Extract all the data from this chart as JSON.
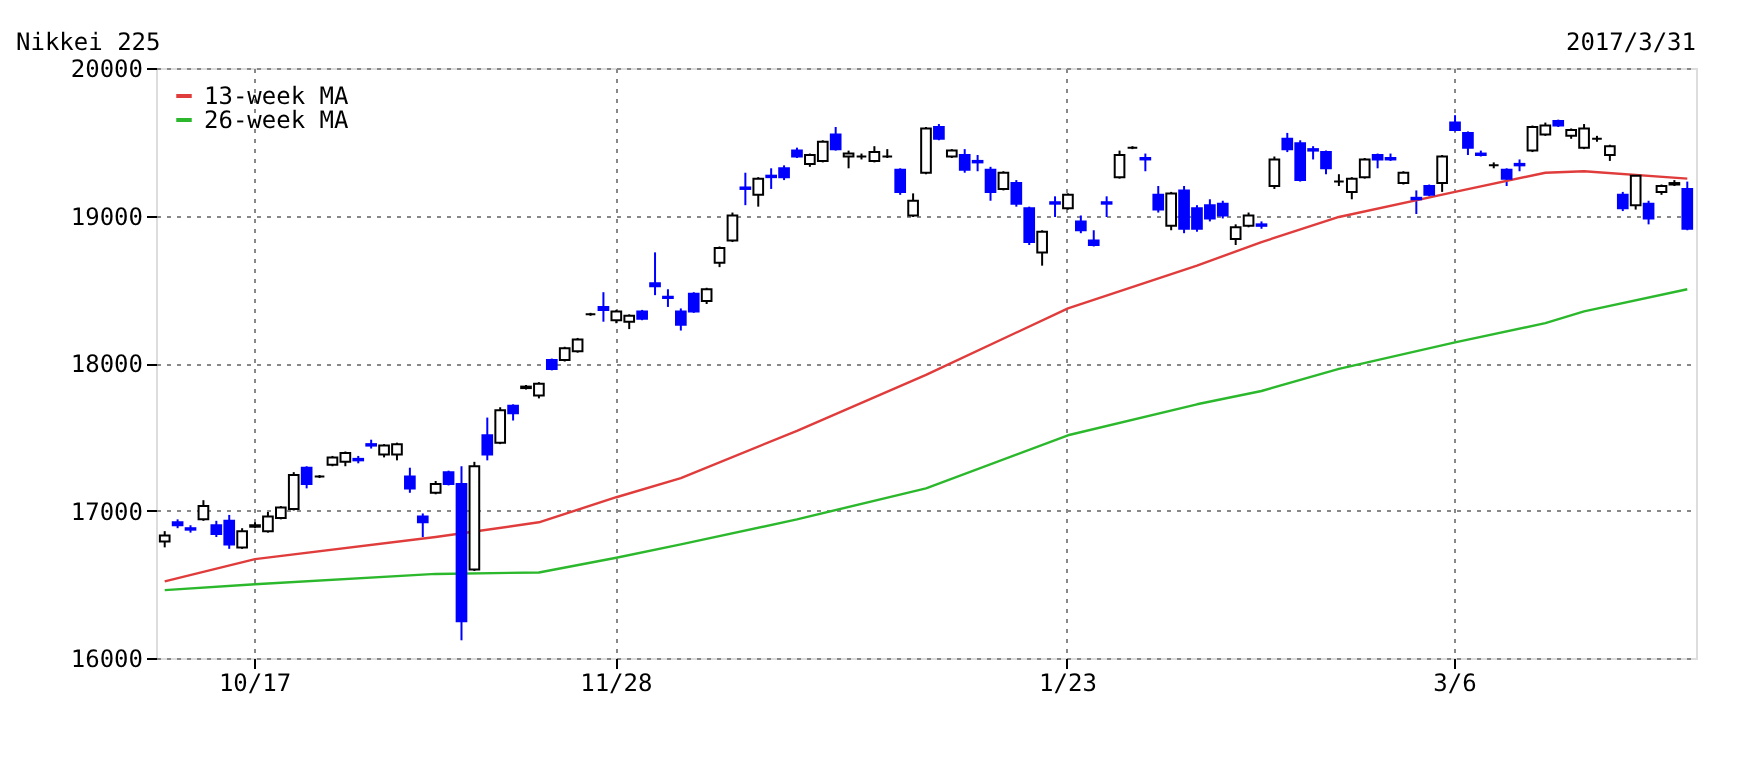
{
  "chart_data": {
    "type": "candlestick",
    "title": "Nikkei 225",
    "annotations": [
      "2017/3/31"
    ],
    "categories": [
      null,
      null,
      null,
      null,
      null,
      null,
      null,
      "10/17",
      null,
      null,
      null,
      null,
      null,
      null,
      null,
      null,
      null,
      null,
      null,
      null,
      null,
      null,
      null,
      null,
      null,
      null,
      null,
      null,
      null,
      null,
      null,
      null,
      null,
      null,
      null,
      "11/28",
      null,
      null,
      null,
      null,
      null,
      null,
      null,
      null,
      null,
      null,
      null,
      null,
      null,
      null,
      null,
      null,
      null,
      null,
      null,
      null,
      null,
      null,
      null,
      null,
      null,
      null,
      null,
      null,
      null,
      null,
      null,
      null,
      null,
      null,
      "1/23",
      null,
      null,
      null,
      null,
      null,
      null,
      null,
      null,
      null,
      null,
      null,
      null,
      null,
      null,
      null,
      null,
      null,
      null,
      null,
      null,
      null,
      null,
      null,
      null,
      null,
      null,
      null,
      null,
      null,
      "3/6",
      null,
      null,
      null,
      null,
      null,
      null,
      null,
      null,
      null,
      null,
      null,
      null,
      null,
      null,
      null,
      null,
      null,
      null
    ],
    "ohlc": [
      [
        16790,
        16860,
        16750,
        16830
      ],
      [
        16920,
        16940,
        16880,
        16900
      ],
      [
        16880,
        16900,
        16850,
        16870
      ],
      [
        16940,
        17070,
        16930,
        17030
      ],
      [
        16900,
        16930,
        16820,
        16840
      ],
      [
        16930,
        16970,
        16740,
        16770
      ],
      [
        16750,
        16880,
        16740,
        16860
      ],
      [
        16890,
        16920,
        16880,
        16900
      ],
      [
        16860,
        16990,
        16850,
        16960
      ],
      [
        16950,
        17030,
        16940,
        17020
      ],
      [
        17010,
        17260,
        17000,
        17240
      ],
      [
        17290,
        17300,
        17150,
        17180
      ],
      [
        17230,
        17240,
        17220,
        17230
      ],
      [
        17310,
        17370,
        17300,
        17360
      ],
      [
        17330,
        17400,
        17300,
        17390
      ],
      [
        17350,
        17370,
        17320,
        17340
      ],
      [
        17450,
        17480,
        17420,
        17440
      ],
      [
        17380,
        17450,
        17360,
        17440
      ],
      [
        17380,
        17460,
        17340,
        17450
      ],
      [
        17230,
        17290,
        17120,
        17150
      ],
      [
        16960,
        16980,
        16820,
        16920
      ],
      [
        17120,
        17200,
        17110,
        17180
      ],
      [
        17260,
        17270,
        17170,
        17180
      ],
      [
        17180,
        17300,
        16120,
        16250
      ],
      [
        16600,
        17330,
        16590,
        17300
      ],
      [
        17510,
        17630,
        17340,
        17380
      ],
      [
        17460,
        17700,
        17450,
        17680
      ],
      [
        17710,
        17720,
        17610,
        17660
      ],
      [
        17830,
        17850,
        17820,
        17840
      ],
      [
        17780,
        17870,
        17760,
        17860
      ],
      [
        18020,
        18030,
        17950,
        17960
      ],
      [
        18020,
        18110,
        18010,
        18100
      ],
      [
        18080,
        18170,
        18070,
        18160
      ],
      [
        18330,
        18340,
        18320,
        18330
      ],
      [
        18380,
        18480,
        18280,
        18360
      ],
      [
        18290,
        18360,
        18270,
        18350
      ],
      [
        18280,
        18330,
        18230,
        18320
      ],
      [
        18350,
        18360,
        18290,
        18300
      ],
      [
        18540,
        18750,
        18460,
        18520
      ],
      [
        18450,
        18500,
        18380,
        18440
      ],
      [
        18350,
        18370,
        18220,
        18260
      ],
      [
        18470,
        18480,
        18340,
        18350
      ],
      [
        18420,
        18510,
        18400,
        18500
      ],
      [
        18680,
        18790,
        18650,
        18780
      ],
      [
        18830,
        19020,
        18820,
        19000
      ],
      [
        19190,
        19290,
        19070,
        19180
      ],
      [
        19140,
        19260,
        19060,
        19250
      ],
      [
        19270,
        19320,
        19180,
        19260
      ],
      [
        19320,
        19340,
        19240,
        19260
      ],
      [
        19440,
        19460,
        19390,
        19400
      ],
      [
        19350,
        19420,
        19330,
        19410
      ],
      [
        19370,
        19510,
        19360,
        19500
      ],
      [
        19550,
        19600,
        19440,
        19450
      ],
      [
        19400,
        19440,
        19320,
        19420
      ],
      [
        19400,
        19420,
        19380,
        19400
      ],
      [
        19370,
        19470,
        19360,
        19430
      ],
      [
        19400,
        19450,
        19390,
        19400
      ],
      [
        19310,
        19320,
        19140,
        19160
      ],
      [
        19000,
        19150,
        18990,
        19100
      ],
      [
        19290,
        19600,
        19280,
        19590
      ],
      [
        19600,
        19620,
        19510,
        19520
      ],
      [
        19400,
        19450,
        19390,
        19440
      ],
      [
        19410,
        19450,
        19290,
        19310
      ],
      [
        19370,
        19410,
        19300,
        19360
      ],
      [
        19310,
        19330,
        19100,
        19160
      ],
      [
        19180,
        19300,
        19170,
        19290
      ],
      [
        19220,
        19240,
        19060,
        19080
      ],
      [
        19050,
        19060,
        18800,
        18820
      ],
      [
        18750,
        18900,
        18660,
        18890
      ],
      [
        19090,
        19130,
        18990,
        19080
      ],
      [
        19050,
        19150,
        19040,
        19140
      ],
      [
        18960,
        19000,
        18880,
        18900
      ],
      [
        18830,
        18900,
        18790,
        18800
      ],
      [
        19090,
        19130,
        18990,
        19080
      ],
      [
        19260,
        19440,
        19250,
        19410
      ],
      [
        19460,
        19470,
        19450,
        19460
      ],
      [
        19390,
        19420,
        19300,
        19380
      ],
      [
        19140,
        19200,
        19020,
        19040
      ],
      [
        18930,
        19160,
        18900,
        19150
      ],
      [
        19170,
        19200,
        18880,
        18910
      ],
      [
        19050,
        19070,
        18890,
        18910
      ],
      [
        19070,
        19110,
        18960,
        18980
      ],
      [
        19080,
        19100,
        18980,
        19000
      ],
      [
        18840,
        18940,
        18800,
        18920
      ],
      [
        18930,
        19020,
        18920,
        19000
      ],
      [
        18940,
        18960,
        18910,
        18930
      ],
      [
        19200,
        19400,
        19180,
        19380
      ],
      [
        19520,
        19560,
        19430,
        19450
      ],
      [
        19490,
        19510,
        19230,
        19240
      ],
      [
        19450,
        19470,
        19380,
        19440
      ],
      [
        19430,
        19440,
        19280,
        19320
      ],
      [
        19230,
        19280,
        19200,
        19230
      ],
      [
        19160,
        19260,
        19110,
        19250
      ],
      [
        19260,
        19390,
        19250,
        19380
      ],
      [
        19410,
        19420,
        19320,
        19380
      ],
      [
        19390,
        19420,
        19370,
        19380
      ],
      [
        19220,
        19300,
        19210,
        19290
      ],
      [
        19120,
        19170,
        19010,
        19110
      ],
      [
        19200,
        19210,
        19130,
        19140
      ],
      [
        19220,
        19410,
        19160,
        19400
      ],
      [
        19630,
        19680,
        19570,
        19580
      ],
      [
        19560,
        19570,
        19410,
        19460
      ],
      [
        19420,
        19440,
        19400,
        19410
      ],
      [
        19340,
        19360,
        19320,
        19340
      ],
      [
        19310,
        19320,
        19200,
        19250
      ],
      [
        19350,
        19380,
        19300,
        19340
      ],
      [
        19440,
        19610,
        19430,
        19600
      ],
      [
        19550,
        19630,
        19540,
        19610
      ],
      [
        19640,
        19650,
        19600,
        19610
      ],
      [
        19540,
        19590,
        19520,
        19580
      ],
      [
        19460,
        19620,
        19450,
        19590
      ],
      [
        19520,
        19540,
        19500,
        19520
      ],
      [
        19410,
        19480,
        19370,
        19470
      ],
      [
        19140,
        19160,
        19030,
        19050
      ],
      [
        19070,
        19280,
        19040,
        19270
      ],
      [
        19080,
        19100,
        18940,
        18980
      ],
      [
        19160,
        19210,
        19140,
        19200
      ],
      [
        19210,
        19240,
        19200,
        19220
      ],
      [
        19180,
        19230,
        18900,
        18910
      ]
    ],
    "series": [
      {
        "name": "13-week MA",
        "type": "line",
        "color": "#e03c3c",
        "values": [
          16520,
          null,
          null,
          null,
          null,
          null,
          null,
          16670,
          null,
          null,
          null,
          null,
          null,
          null,
          null,
          null,
          null,
          null,
          null,
          null,
          null,
          16820,
          null,
          null,
          null,
          null,
          null,
          null,
          null,
          16920,
          null,
          null,
          null,
          null,
          null,
          17090,
          null,
          null,
          null,
          null,
          17220,
          null,
          null,
          null,
          null,
          null,
          null,
          null,
          null,
          17540,
          null,
          null,
          null,
          null,
          null,
          null,
          null,
          null,
          null,
          17920,
          null,
          null,
          null,
          null,
          null,
          null,
          null,
          null,
          null,
          null,
          18370,
          null,
          null,
          null,
          null,
          null,
          null,
          null,
          null,
          null,
          18660,
          null,
          null,
          null,
          null,
          18820,
          null,
          null,
          null,
          null,
          null,
          18990,
          null,
          null,
          null,
          null,
          null,
          null,
          null,
          null,
          19160,
          null,
          null,
          null,
          null,
          null,
          null,
          19290,
          null,
          null,
          19300,
          null,
          null,
          null,
          null,
          null,
          null,
          null,
          19250
        ]
      },
      {
        "name": "26-week MA",
        "type": "line",
        "color": "#2cb82c",
        "values": [
          16460,
          null,
          null,
          null,
          null,
          null,
          null,
          16500,
          null,
          null,
          null,
          null,
          null,
          null,
          null,
          null,
          null,
          null,
          null,
          null,
          null,
          16570,
          null,
          null,
          null,
          null,
          null,
          null,
          null,
          16580,
          null,
          null,
          null,
          null,
          null,
          16680,
          null,
          null,
          null,
          null,
          16770,
          null,
          null,
          null,
          null,
          null,
          null,
          null,
          null,
          16940,
          null,
          null,
          null,
          null,
          null,
          null,
          null,
          null,
          null,
          17150,
          null,
          null,
          null,
          null,
          null,
          null,
          null,
          null,
          null,
          null,
          17510,
          null,
          null,
          null,
          null,
          null,
          null,
          null,
          null,
          null,
          17720,
          null,
          null,
          null,
          null,
          17810,
          null,
          null,
          null,
          null,
          null,
          17960,
          null,
          null,
          null,
          null,
          null,
          null,
          null,
          null,
          18140,
          null,
          null,
          null,
          null,
          null,
          null,
          18270,
          null,
          null,
          18350,
          null,
          null,
          null,
          null,
          null,
          null,
          null,
          18500
        ]
      }
    ],
    "ylim": [
      16000,
      20000
    ],
    "yticks": [
      16000,
      17000,
      18000,
      19000,
      20000
    ],
    "grid": true,
    "legend": "top left"
  }
}
